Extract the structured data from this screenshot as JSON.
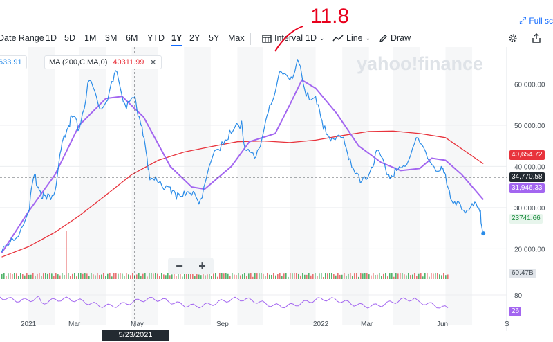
{
  "header": {
    "fullscreen_label": "Full sc",
    "fullscreen_icon": "expand-arrows-icon"
  },
  "toolbar": {
    "ranges": [
      "Date Range",
      "1D",
      "5D",
      "1M",
      "3M",
      "6M",
      "YTD",
      "1Y",
      "2Y",
      "5Y",
      "Max"
    ],
    "active_range": "1Y",
    "interval_label": "Interval",
    "interval_value": "1D",
    "line_label": "Line",
    "draw_label": "Draw"
  },
  "legend": {
    "price_value": "633.91",
    "ma_label": "MA (200,C,MA,0)",
    "ma_value": "40311.99",
    "ma_color": "#e8333c"
  },
  "watermark": "yahoo!finance",
  "annotation": "11.8",
  "price_tags": {
    "ma200": "40,654.72",
    "crosshair": "34,770.58",
    "ma50": "31,946.33",
    "last": "23741.66",
    "volume": "60.47B",
    "rsi": "26"
  },
  "crosshair_date": "5/23/2021",
  "zoom": {
    "minus": "−",
    "plus": "+"
  },
  "colors": {
    "price": "#2a8ce8",
    "ma50": "#a366f0",
    "ma200": "#e8333c",
    "accent": "#0f69ff"
  },
  "chart_data": {
    "type": "line",
    "series": [
      {
        "name": "Price",
        "x": [
          "2020-12-01",
          "2020-12-15",
          "2021-01-01",
          "2021-01-08",
          "2021-01-15",
          "2021-01-22",
          "2021-02-01",
          "2021-02-08",
          "2021-02-15",
          "2021-02-21",
          "2021-03-01",
          "2021-03-13",
          "2021-03-25",
          "2021-04-05",
          "2021-04-14",
          "2021-04-25",
          "2021-05-05",
          "2021-05-12",
          "2021-05-19",
          "2021-05-23",
          "2021-06-01",
          "2021-06-15",
          "2021-06-22",
          "2021-07-01",
          "2021-07-10",
          "2021-07-20",
          "2021-08-01",
          "2021-08-14",
          "2021-08-25",
          "2021-09-06",
          "2021-09-10",
          "2021-09-21",
          "2021-10-01",
          "2021-10-10",
          "2021-10-20",
          "2021-11-01",
          "2021-11-10",
          "2021-11-20",
          "2021-12-01",
          "2021-12-10",
          "2021-12-20",
          "2022-01-01",
          "2022-01-10",
          "2022-01-22",
          "2022-02-01",
          "2022-02-10",
          "2022-02-24",
          "2022-03-05",
          "2022-03-15",
          "2022-03-28",
          "2022-04-10",
          "2022-04-25",
          "2022-05-01",
          "2022-05-10",
          "2022-05-20",
          "2022-06-01",
          "2022-06-10",
          "2022-06-14"
        ],
        "y": [
          19200,
          22000,
          29000,
          38000,
          34000,
          32000,
          34000,
          44000,
          49000,
          52000,
          49000,
          61000,
          54000,
          58000,
          63000,
          54000,
          57000,
          50000,
          42000,
          37000,
          36000,
          35000,
          32000,
          34000,
          33000,
          32000,
          41000,
          46000,
          48000,
          51000,
          44000,
          42000,
          48000,
          55000,
          63000,
          61000,
          66000,
          57000,
          57000,
          49000,
          47000,
          47000,
          42000,
          36000,
          38000,
          44000,
          38000,
          39000,
          40000,
          47000,
          42000,
          39000,
          38000,
          31000,
          29500,
          31000,
          29000,
          23741
        ]
      },
      {
        "name": "MA 50",
        "x": [
          "2020-12-01",
          "2021-01-01",
          "2021-02-01",
          "2021-03-01",
          "2021-04-01",
          "2021-04-20",
          "2021-05-15",
          "2021-06-15",
          "2021-07-10",
          "2021-07-25",
          "2021-08-25",
          "2021-09-15",
          "2021-10-15",
          "2021-11-01",
          "2021-11-15",
          "2021-12-01",
          "2021-12-25",
          "2022-01-20",
          "2022-02-15",
          "2022-03-10",
          "2022-04-01",
          "2022-04-15",
          "2022-05-01",
          "2022-05-20",
          "2022-06-14"
        ],
        "y": [
          19000,
          29000,
          38000,
          50000,
          56500,
          57000,
          52000,
          40000,
          35000,
          34500,
          40000,
          46000,
          48000,
          55000,
          61000,
          59000,
          53000,
          45000,
          41000,
          39000,
          39500,
          42000,
          41500,
          38000,
          31946
        ]
      },
      {
        "name": "MA (200,C,MA,0)",
        "x": [
          "2020-12-01",
          "2021-01-01",
          "2021-02-01",
          "2021-03-01",
          "2021-04-01",
          "2021-05-01",
          "2021-06-01",
          "2021-07-01",
          "2021-08-01",
          "2021-09-01",
          "2021-10-01",
          "2021-11-01",
          "2021-12-01",
          "2022-01-01",
          "2022-02-01",
          "2022-03-01",
          "2022-04-01",
          "2022-05-01",
          "2022-06-14"
        ],
        "y": [
          18000,
          20500,
          24000,
          28000,
          33000,
          38000,
          41500,
          43500,
          44800,
          46000,
          46200,
          45800,
          46400,
          47500,
          48500,
          48600,
          48000,
          47000,
          40654
        ]
      }
    ],
    "x_ticks": [
      "2021",
      "Mar",
      "May",
      "Sep",
      "2022",
      "Mar",
      "Jun",
      "S"
    ],
    "y_ticks": [
      "20,000.00",
      "30,000.00",
      "40,000.00",
      "50,000.00",
      "60,000.00"
    ],
    "ylim": [
      14000,
      69000
    ],
    "xlim": [
      "2020-11-29",
      "2022-09-03"
    ],
    "rsi_tick": "80",
    "grid": true,
    "legend_placement": "top-left"
  }
}
